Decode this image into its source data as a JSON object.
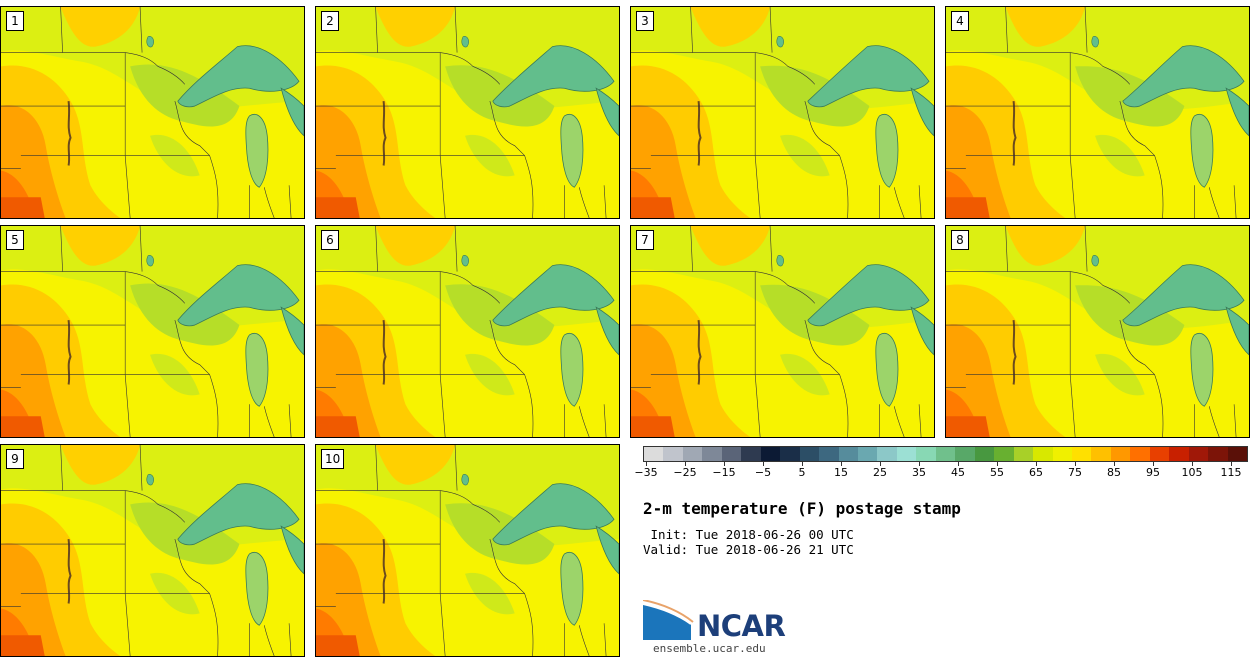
{
  "panels": [
    {
      "number": "1"
    },
    {
      "number": "2"
    },
    {
      "number": "3"
    },
    {
      "number": "4"
    },
    {
      "number": "5"
    },
    {
      "number": "6"
    },
    {
      "number": "7"
    },
    {
      "number": "8"
    },
    {
      "number": "9"
    },
    {
      "number": "10"
    }
  ],
  "colorbar": {
    "tick_labels": [
      "−35",
      "−25",
      "−15",
      "−5",
      "5",
      "15",
      "25",
      "35",
      "45",
      "55",
      "65",
      "75",
      "85",
      "95",
      "105",
      "115"
    ],
    "colors": [
      "#dcdcdc",
      "#c0c4cc",
      "#a0a8b4",
      "#7e8898",
      "#5a6478",
      "#2e3a50",
      "#0c1a34",
      "#1a2e48",
      "#2c4e66",
      "#3d6880",
      "#568c9c",
      "#6aa8b0",
      "#8cc8c8",
      "#9ce0d4",
      "#88d8b4",
      "#70c08c",
      "#58a868",
      "#489840",
      "#68b030",
      "#a8d028",
      "#d8e800",
      "#f0f000",
      "#ffe000",
      "#ffc000",
      "#ff9800",
      "#ff7000",
      "#e84000",
      "#c82000",
      "#a01808",
      "#7c1408",
      "#5a1008"
    ]
  },
  "title": "2-m temperature (F) postage stamp",
  "init": " Init: Tue 2018-06-26 00 UTC",
  "valid": "Valid: Tue 2018-06-26 21 UTC",
  "logo_text": "NCAR",
  "site": "ensemble.ucar.edu"
}
